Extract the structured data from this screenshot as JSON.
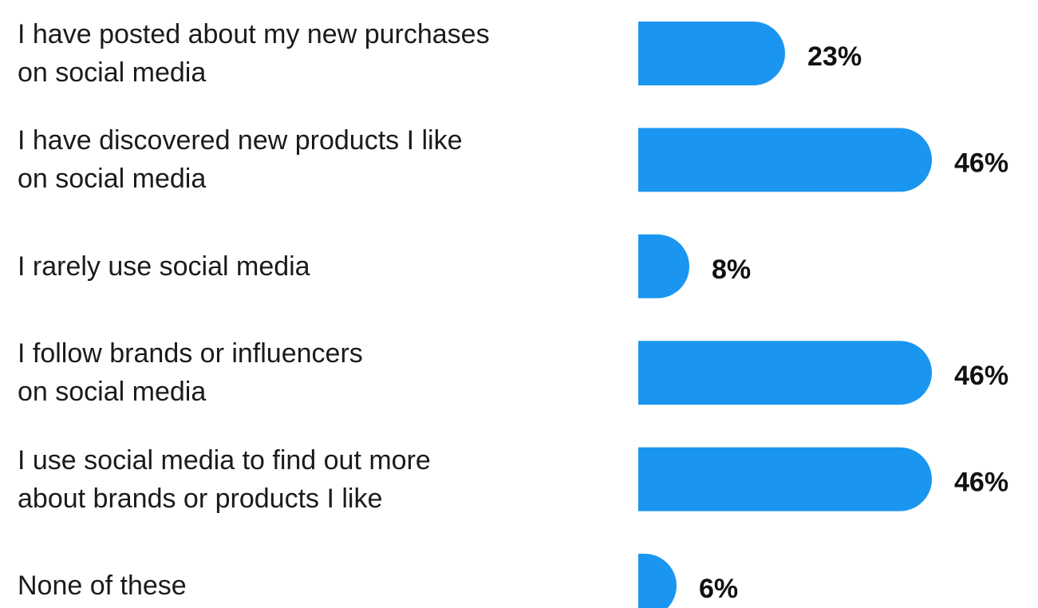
{
  "chart_data": {
    "type": "bar",
    "categories": [
      "I have posted about my new purchases\non social media",
      "I have discovered new products I like\non social media",
      "I rarely use social media",
      "I follow brands or influencers\non social media",
      "I use social media to find out more\nabout brands or products I like",
      "None of these"
    ],
    "values": [
      23,
      46,
      8,
      46,
      46,
      6
    ],
    "value_labels": [
      "23%",
      "46%",
      "8%",
      "46%",
      "46%",
      "6%"
    ],
    "color": "#1a96f0"
  }
}
